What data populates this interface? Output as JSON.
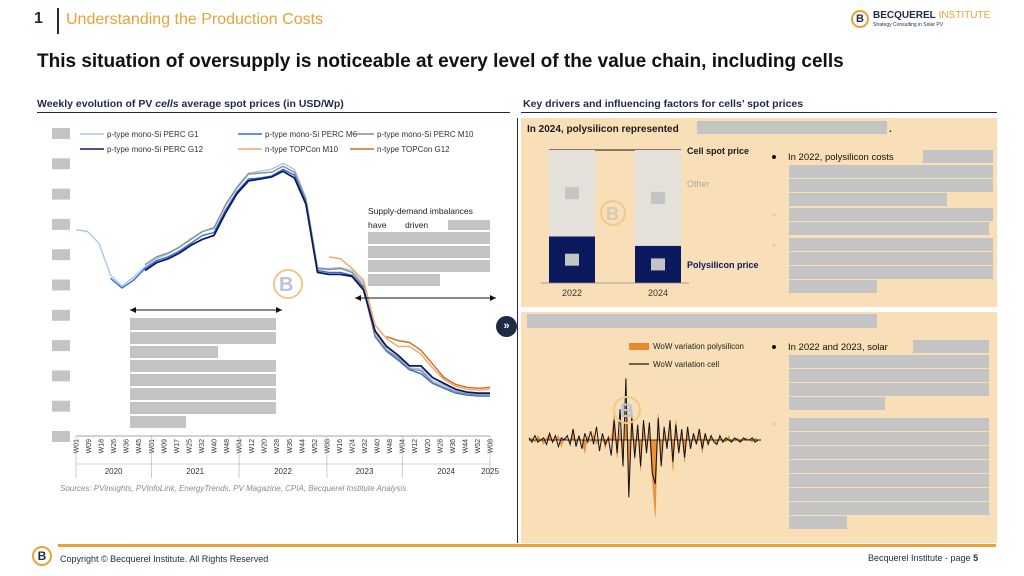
{
  "header": {
    "slide_number": "1",
    "section_title": "Understanding the Production Costs",
    "logo_name": "BECQUEREL",
    "logo_name_accent": "INSTITUTE",
    "logo_tagline": "Strategy Consulting in Solar PV"
  },
  "main_title": "This situation of oversupply is noticeable at every level of the value chain, including cells",
  "left": {
    "subtitle_pre": "Weekly evolution of PV ",
    "subtitle_italic": "cells",
    "subtitle_post": " average spot prices (in USD/Wp)",
    "annotation_line1": "Supply-demand imbalances",
    "annotation_line2_a": "have",
    "annotation_line2_b": "driven",
    "source": "Sources: PVinsights, PVInfoLink, EnergyTrends, PV Magazine, CPIA, Becquerel Institute Analysis"
  },
  "right": {
    "subtitle": "Key drivers and influencing factors for cells’ spot prices",
    "top_panel_heading": "In 2024, polysilicon represented",
    "top_panel_heading_end": ".",
    "top_bullet_1": "In 2022, polysilicon costs",
    "bottom_bullet_1": "In 2022 and 2023, solar"
  },
  "footer": {
    "copyright": "Copyright © Becquerel Institute. All Rights Reserved",
    "page_label": "Becquerel Institute - page ",
    "page_number": "5"
  },
  "colors": {
    "navy": "#1f2a44",
    "dark_navy": "#0b1a5e",
    "orange": "#e8a23a",
    "panel": "#f8dfb8"
  },
  "chart_data": [
    {
      "type": "line",
      "title": "",
      "xlabel": "",
      "ylabel": "",
      "series": [
        {
          "name": "p-type mono-Si PERC G1",
          "color": "#a9c8ec",
          "values": [
            0.21,
            0.208,
            0.196,
            0.163,
            0.152,
            0.161,
            0.172,
            0.18,
            0.185,
            0.192,
            0.201,
            0.208,
            0.211,
            0.236,
            0.254,
            0.268,
            0.27,
            0.272,
            0.278,
            0.272,
            0.242,
            0.171,
            0.17,
            0.171,
            0.168,
            0.155,
            0.104,
            0.087,
            0.079,
            0.068,
            0.067,
            0.055,
            0.05,
            0.044,
            0.042,
            0.041,
            0.041
          ]
        },
        {
          "name": "p-type mono-Si PERC M6",
          "color": "#2f6fd6",
          "values": [
            null,
            null,
            null,
            0.16,
            0.15,
            0.158,
            0.17,
            0.178,
            0.182,
            0.188,
            0.196,
            0.204,
            0.207,
            0.23,
            0.249,
            0.262,
            0.263,
            0.265,
            0.272,
            0.266,
            0.238,
            0.168,
            0.166,
            0.166,
            0.163,
            0.15,
            0.1,
            0.085,
            0.076,
            0.066,
            0.062,
            0.052,
            0.047,
            0.042,
            0.04,
            0.039,
            0.039
          ]
        },
        {
          "name": "p-type mono-Si PERC M10",
          "color": "#8c8c8c",
          "values": [
            null,
            null,
            null,
            null,
            null,
            null,
            0.174,
            0.182,
            0.186,
            0.192,
            0.2,
            0.208,
            0.212,
            0.235,
            0.253,
            0.267,
            0.268,
            0.269,
            0.275,
            0.269,
            0.241,
            0.17,
            0.169,
            0.17,
            0.166,
            0.152,
            0.101,
            0.086,
            0.078,
            0.067,
            0.065,
            0.053,
            0.048,
            0.043,
            0.041,
            0.04,
            0.04
          ]
        },
        {
          "name": "p-type mono-Si PERC G12",
          "color": "#0b1a5e",
          "values": [
            null,
            null,
            null,
            null,
            null,
            null,
            0.168,
            0.176,
            0.18,
            0.186,
            0.194,
            0.2,
            0.204,
            0.227,
            0.247,
            0.26,
            0.262,
            0.264,
            0.27,
            0.263,
            0.236,
            0.166,
            0.164,
            0.164,
            0.162,
            0.148,
            0.106,
            0.09,
            0.081,
            0.07,
            0.07,
            0.058,
            0.052,
            0.046,
            0.043,
            0.042,
            0.042
          ]
        },
        {
          "name": "n-type TOPCon M10",
          "color": "#f0a560",
          "values": [
            null,
            null,
            null,
            null,
            null,
            null,
            null,
            null,
            null,
            null,
            null,
            null,
            null,
            null,
            null,
            null,
            null,
            null,
            null,
            null,
            null,
            null,
            0.182,
            0.18,
            0.17,
            0.158,
            0.112,
            0.098,
            0.09,
            0.09,
            0.082,
            0.068,
            0.056,
            0.049,
            0.046,
            0.045,
            0.046
          ]
        },
        {
          "name": "n-type TOPCon G12",
          "color": "#d4691e",
          "values": [
            null,
            null,
            null,
            null,
            null,
            null,
            null,
            null,
            null,
            null,
            null,
            null,
            null,
            null,
            null,
            null,
            null,
            null,
            null,
            null,
            null,
            null,
            null,
            null,
            null,
            null,
            null,
            0.1,
            0.096,
            0.094,
            0.086,
            0.072,
            0.058,
            0.051,
            0.048,
            0.047,
            0.048
          ]
        }
      ],
      "x_ticks": [
        "W01",
        "W09",
        "W18",
        "W26",
        "W36",
        "W45",
        "W01",
        "W09",
        "W17",
        "W25",
        "W32",
        "W40",
        "W48",
        "W04",
        "W12",
        "W20",
        "W28",
        "W36",
        "W44",
        "W52",
        "W08",
        "W16",
        "W24",
        "W32",
        "W40",
        "W48",
        "W04",
        "W12",
        "W20",
        "W28",
        "W36",
        "W44",
        "W52",
        "W08"
      ],
      "years": [
        "2020",
        "2021",
        "2022",
        "2023",
        "2024",
        "2025"
      ],
      "ylim": [
        0,
        0.3
      ],
      "legend": "top",
      "grid": false
    },
    {
      "type": "bar",
      "stacked": true,
      "categories": [
        "2022",
        "2024"
      ],
      "series": [
        {
          "name": "Polysilicon price",
          "color": "#0b1a5e",
          "values": [
            0.35,
            0.28
          ]
        },
        {
          "name": "Other",
          "color": "#e4e0da",
          "values": [
            0.65,
            0.72
          ]
        }
      ],
      "total_label": "Cell spot price",
      "ylim": [
        0,
        1
      ]
    },
    {
      "type": "line",
      "series": [
        {
          "name": "WoW variation polysilicon",
          "color": "#e8892e",
          "kind": "area"
        },
        {
          "name": "WoW variation cell",
          "color": "#111111",
          "kind": "line"
        }
      ],
      "legend": "top-right",
      "grid": false
    }
  ]
}
